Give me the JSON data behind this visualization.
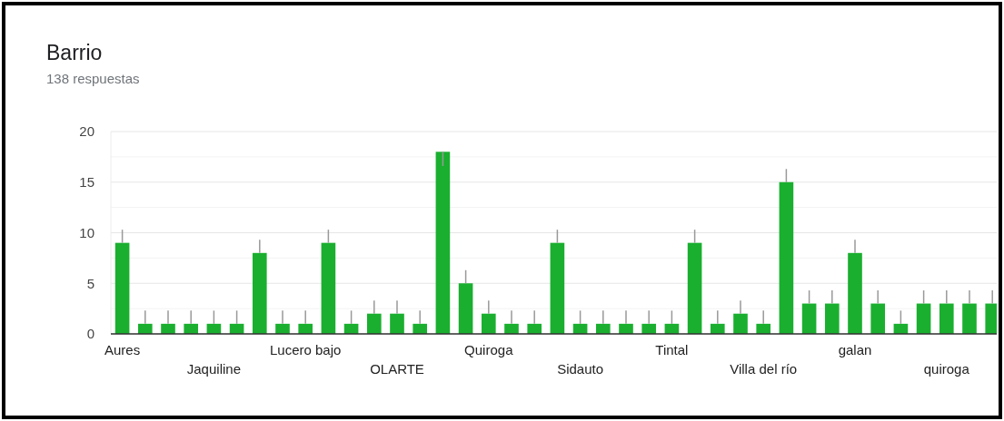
{
  "chart_data": {
    "type": "bar",
    "title": "Barrio",
    "subtitle": "138 respuestas",
    "categories": [
      "Aures",
      null,
      null,
      null,
      "Jaquiline",
      null,
      null,
      null,
      "Lucero bajo",
      null,
      null,
      null,
      "OLARTE",
      null,
      null,
      null,
      "Quiroga",
      null,
      null,
      null,
      "Sidauto",
      null,
      null,
      null,
      "Tintal",
      null,
      null,
      null,
      "Villa del río",
      null,
      null,
      null,
      "galan",
      null,
      null,
      null,
      "quiroga",
      null,
      null
    ],
    "values": [
      9,
      1,
      1,
      1,
      1,
      1,
      8,
      1,
      1,
      9,
      1,
      2,
      2,
      1,
      18,
      5,
      2,
      1,
      1,
      9,
      1,
      1,
      1,
      1,
      1,
      9,
      1,
      2,
      1,
      15,
      3,
      3,
      8,
      3,
      1,
      3,
      3,
      3,
      3
    ],
    "errors": [
      [
        9,
        10.3
      ],
      [
        1,
        2.3
      ],
      [
        1,
        2.3
      ],
      [
        1,
        2.3
      ],
      [
        1,
        2.3
      ],
      [
        1,
        2.3
      ],
      [
        8,
        9.3
      ],
      [
        1,
        2.3
      ],
      [
        1,
        2.3
      ],
      [
        9,
        10.3
      ],
      [
        1,
        2.3
      ],
      [
        2,
        3.3
      ],
      [
        2,
        3.3
      ],
      [
        1,
        2.3
      ],
      [
        16.6,
        18
      ],
      [
        5,
        6.3
      ],
      [
        2,
        3.3
      ],
      [
        1,
        2.3
      ],
      [
        1,
        2.3
      ],
      [
        9,
        10.3
      ],
      [
        1,
        2.3
      ],
      [
        1,
        2.3
      ],
      [
        1,
        2.3
      ],
      [
        1,
        2.3
      ],
      [
        1,
        2.3
      ],
      [
        9,
        10.3
      ],
      [
        1,
        2.3
      ],
      [
        2,
        3.3
      ],
      [
        1,
        2.3
      ],
      [
        15,
        16.3
      ],
      [
        3,
        4.3
      ],
      [
        3,
        4.3
      ],
      [
        8,
        9.3
      ],
      [
        3,
        4.3
      ],
      [
        1,
        2.3
      ],
      [
        3,
        4.3
      ],
      [
        3,
        4.3
      ],
      [
        3,
        4.3
      ],
      [
        3,
        4.3
      ]
    ],
    "color": "#1aaf2f",
    "ylim": [
      0,
      20
    ],
    "yticks": [
      0,
      {
        "value": 2.5,
        "label": null
      },
      5,
      {
        "value": 7.5,
        "label": null
      },
      10,
      {
        "value": 12.5,
        "label": null
      },
      15,
      {
        "value": 17.5,
        "label": null
      },
      20
    ],
    "grid": true
  }
}
